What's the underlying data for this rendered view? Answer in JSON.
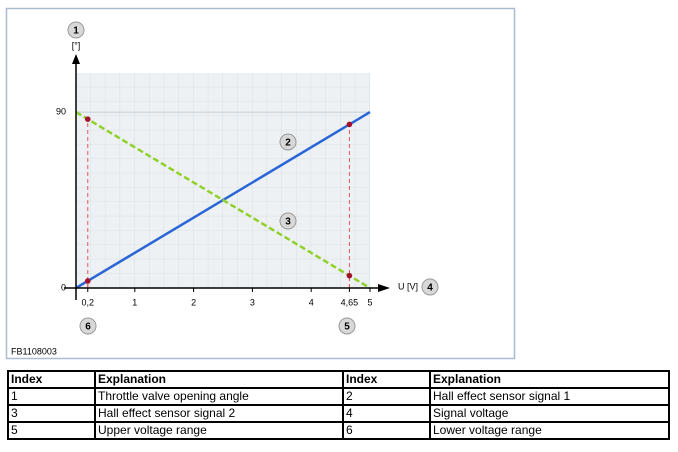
{
  "chart_data": {
    "type": "line",
    "y_label": "[°]",
    "x_label": "U [V]",
    "figure_code": "FB1108003",
    "callouts": [
      "1",
      "2",
      "3",
      "4",
      "5",
      "6"
    ],
    "x": [
      0,
      0.2,
      4.65,
      5
    ],
    "series": [
      {
        "color": "#2a66d6",
        "values": [
          0,
          3.6,
          83.7,
          90
        ],
        "markers": [
          false,
          true,
          true,
          false
        ]
      },
      {
        "color": "#8fd12a",
        "dashed": true,
        "values": [
          90,
          86.4,
          6.3,
          0
        ],
        "markers": [
          false,
          true,
          true,
          false
        ]
      }
    ],
    "marker_color": "#a3122a",
    "xlim": [
      0,
      5
    ],
    "ylim": [
      0,
      110
    ],
    "xticks": [
      {
        "value": 0.2,
        "label": "0,2"
      },
      1,
      2,
      3,
      4,
      {
        "value": 4.65,
        "label": "4,65"
      },
      5
    ],
    "yticks": [
      0,
      90
    ],
    "grid": true
  },
  "table": {
    "header": [
      "Index",
      "Explanation",
      "Index",
      "Explanation"
    ],
    "rows": [
      [
        "1",
        "Throttle valve opening angle",
        "2",
        "Hall effect sensor signal 1"
      ],
      [
        "3",
        "Hall effect sensor signal 2",
        "4",
        "Signal voltage"
      ],
      [
        "5",
        "Upper voltage range",
        "6",
        "Lower voltage range"
      ]
    ]
  }
}
